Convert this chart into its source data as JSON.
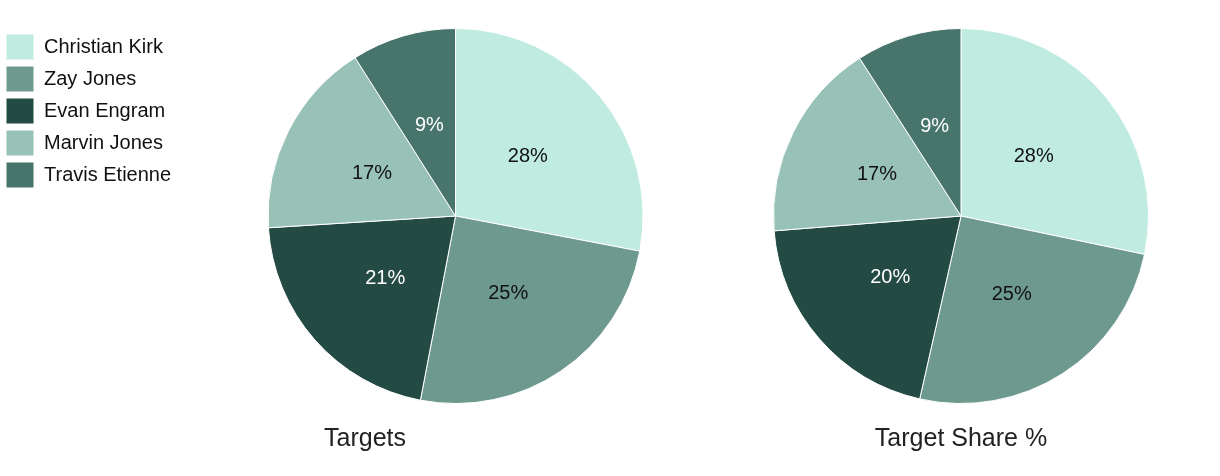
{
  "chart_data": [
    {
      "type": "pie",
      "title": "Targets",
      "categories": [
        "Christian Kirk",
        "Zay Jones",
        "Evan Engram",
        "Marvin Jones",
        "Travis Etienne"
      ],
      "values": [
        28,
        25,
        21,
        17,
        9
      ],
      "value_labels": [
        "28%",
        "25%",
        "21%",
        "17%",
        "9%"
      ],
      "colors": [
        "#bfebe1",
        "#6d998f",
        "#234b44",
        "#98c1b7",
        "#48756b"
      ],
      "legend": "left"
    },
    {
      "type": "pie",
      "title": "Target Share %",
      "categories": [
        null,
        null,
        null,
        null,
        null
      ],
      "values": [
        28,
        25,
        20,
        17,
        9
      ],
      "value_labels": [
        "28%",
        "25%",
        "20%",
        "17%",
        "9%"
      ],
      "colors": [
        "#bfebe1",
        "#6d998f",
        "#234b44",
        "#98c1b7",
        "#48756b"
      ],
      "legend": false
    }
  ]
}
